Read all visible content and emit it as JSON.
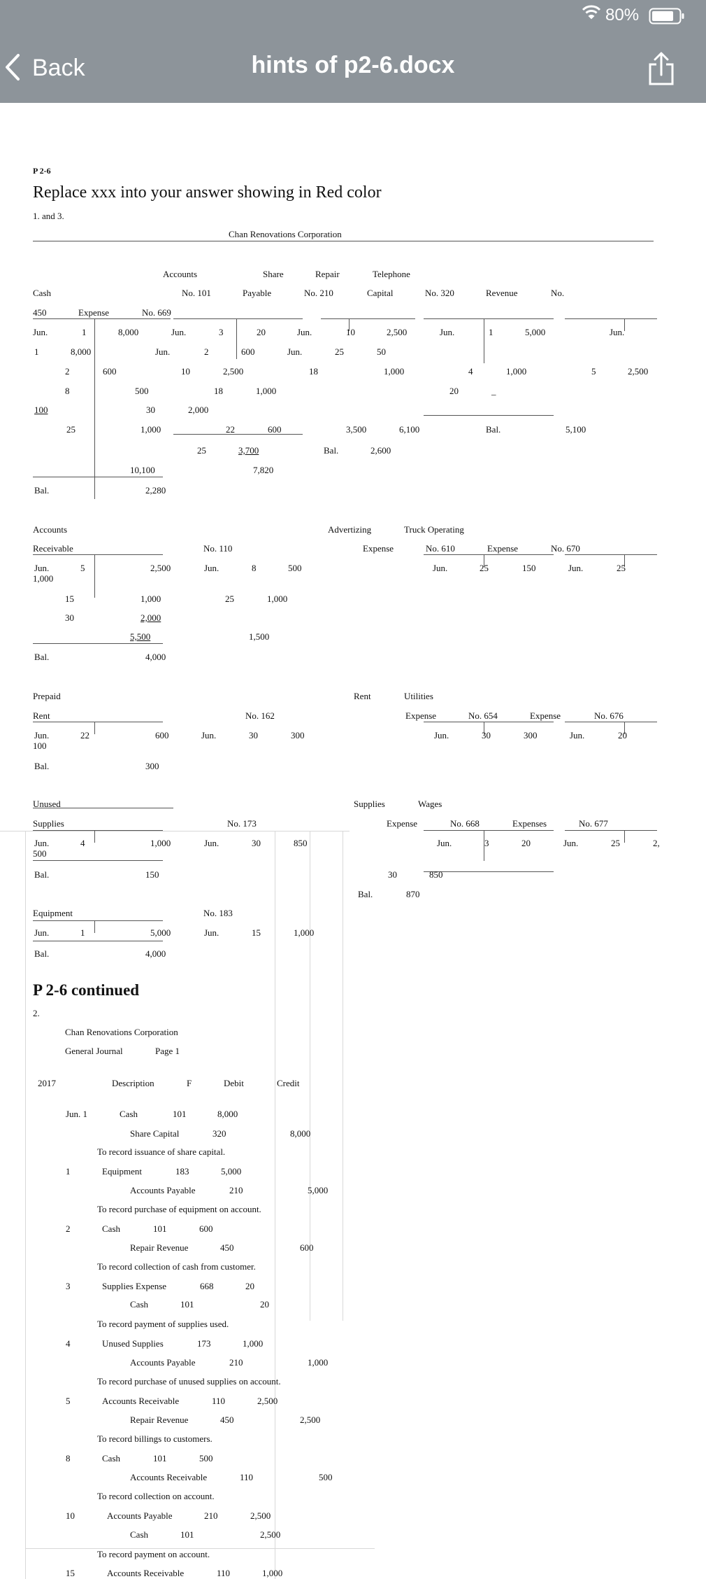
{
  "status": {
    "battery": "80%"
  },
  "nav": {
    "back_label": "Back",
    "title": "hints of p2-6.docx"
  },
  "doc": {
    "heading": "P 2-6",
    "instruction": "Replace xxx into your answer showing in Red color",
    "section1": "1. and 3.",
    "company": "Chan Renovations Corporation",
    "continued": "P 2-6 continued",
    "section2": "2.",
    "journal_company": "Chan Renovations Corporation",
    "journal_title": "General Journal",
    "journal_page": "Page 1",
    "journal_year": "2017",
    "col_description": "Description",
    "col_f": "F",
    "col_debit": "Debit",
    "col_credit": "Credit"
  },
  "ledger": [
    "Accounts",
    "Share",
    "Repair",
    "Telephone",
    "Cash",
    "No. 101",
    "Payable",
    "No. 210",
    "Capital",
    "No. 320",
    "Revenue",
    "No.",
    "450",
    "Expense",
    "No. 669",
    "Jun.",
    "1",
    "8,000",
    "Jun.",
    "3",
    "20",
    "Jun.",
    "10",
    "2,500",
    "Jun.",
    "1",
    "5,000",
    "Jun.",
    "1",
    "8,000",
    "Jun.",
    "2",
    "600",
    "Jun.",
    "25",
    "50",
    "2",
    "600",
    "10",
    "2,500",
    "18",
    "1,000",
    "4",
    "1,000",
    "5",
    "2,500",
    "8",
    "500",
    "18",
    "1,000",
    "20",
    "_",
    "100",
    "30",
    "2,000",
    "25",
    "1,000",
    "22",
    "600",
    "3,500",
    "6,100",
    "Bal.",
    "5,100",
    "25",
    "3,700",
    "Bal.",
    "2,600",
    "7,820",
    "10,100",
    "Bal.",
    "2,280",
    "Accounts",
    "Advertizing",
    "Truck Operating",
    "Receivable",
    "No. 110",
    "Expense",
    "No. 610",
    "Expense",
    "No. 670",
    "Jun.",
    "5",
    "2,500",
    "Jun.",
    "8",
    "500",
    "Jun.",
    "25",
    "150",
    "Jun.",
    "25",
    "1,000",
    "15",
    "1,000",
    "25",
    "1,000",
    "30",
    "2,000",
    "5,500",
    "1,500",
    "Bal.",
    "4,000",
    "Prepaid",
    "Rent",
    "Utilities",
    "Rent",
    "No. 162",
    "Expense",
    "No. 654",
    "Expense",
    "No. 676",
    "Jun.",
    "22",
    "600",
    "Jun.",
    "30",
    "300",
    "Jun.",
    "30",
    "300",
    "Jun.",
    "20",
    "100",
    "Bal.",
    "300",
    "Unused",
    "Supplies",
    "Wages",
    "Supplies",
    "No. 173",
    "Expense",
    "No. 668",
    "Expenses",
    "No. 677",
    "Jun.",
    "4",
    "1,000",
    "Jun.",
    "30",
    "850",
    "Jun.",
    "3",
    "20",
    "Jun.",
    "25",
    "2,",
    "500",
    "Bal.",
    "150",
    "30",
    "850",
    "Bal.",
    "870",
    "Equipment",
    "No. 183",
    "Jun.",
    "1",
    "5,000",
    "Jun.",
    "15",
    "1,000",
    "Bal.",
    "4,000"
  ],
  "journal": [
    "Jun. 1",
    "Cash",
    "101",
    "8,000",
    "Share Capital",
    "320",
    "8,000",
    "To record issuance of share capital.",
    "1",
    "Equipment",
    "183",
    "5,000",
    "Accounts Payable",
    "210",
    "5,000",
    "To record purchase of equipment on account.",
    "2",
    "Cash",
    "101",
    "600",
    "Repair Revenue",
    "450",
    "600",
    "To record collection of cash from customer.",
    "3",
    "Supplies Expense",
    "668",
    "20",
    "Cash",
    "101",
    "20",
    "To record payment of supplies used.",
    "4",
    "Unused Supplies",
    "173",
    "1,000",
    "Accounts Payable",
    "210",
    "1,000",
    "To record purchase of unused supplies on account.",
    "5",
    "Accounts Receivable",
    "110",
    "2,500",
    "Repair Revenue",
    "450",
    "2,500",
    "To record billings to customers.",
    "8",
    "Cash",
    "101",
    "500",
    "Accounts Receivable",
    "110",
    "500",
    "To record collection on account.",
    "10",
    "Accounts Payable",
    "210",
    "2,500",
    "Cash",
    "101",
    "2,500",
    "To record payment on account.",
    "15",
    "Accounts Receivable",
    "110",
    "1,000"
  ]
}
